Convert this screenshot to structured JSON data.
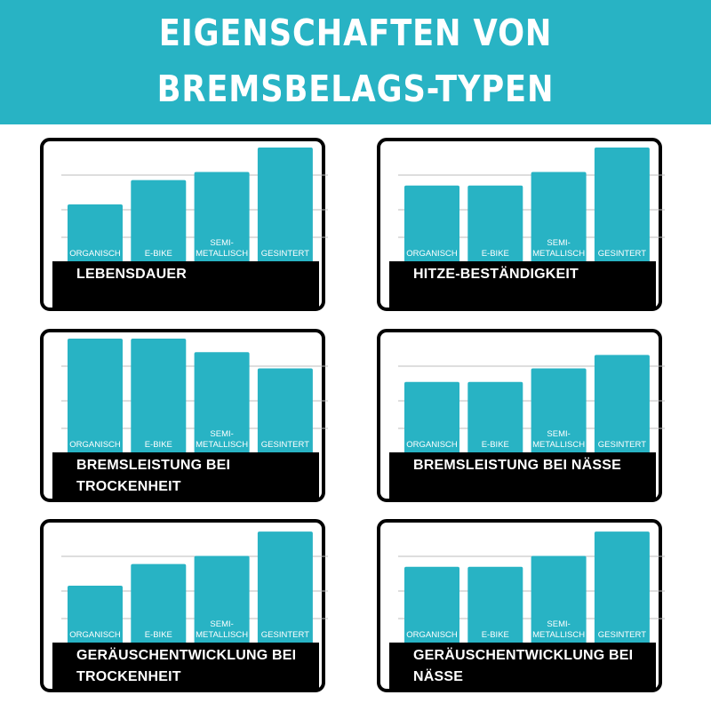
{
  "page": {
    "title_line_1": "EIGENSCHAFTEN VON",
    "title_line_2": "BREMSBELAGS-TYPEN"
  },
  "colors": {
    "header": "#28b3c4",
    "bar": "#28b3c4",
    "caption_bg": "#000000",
    "gridline": "#bdbdbd"
  },
  "chart_data": [
    {
      "type": "bar",
      "title": "LEBENSDAUER",
      "categories": [
        "ORGANISCH",
        "E-BIKE",
        "SEMI-\nMETALLISCH",
        "GESINTERT"
      ],
      "values": [
        2.1,
        3.0,
        3.3,
        4.2
      ],
      "ylim": [
        0,
        4.3
      ],
      "grid": true
    },
    {
      "type": "bar",
      "title": "HITZE-BESTÄNDIGKEIT",
      "categories": [
        "ORGANISCH",
        "E-BIKE",
        "SEMI-\nMETALLISCH",
        "GESINTERT"
      ],
      "values": [
        2.8,
        2.8,
        3.3,
        4.2
      ],
      "ylim": [
        0,
        4.3
      ],
      "grid": true
    },
    {
      "type": "bar",
      "title": "BREMSLEISTUNG BEI\nTROCKENHEIT",
      "categories": [
        "ORGANISCH",
        "E-BIKE",
        "SEMI-\nMETALLISCH",
        "GESINTERT"
      ],
      "values": [
        4.2,
        4.2,
        3.7,
        3.1
      ],
      "ylim": [
        0,
        4.3
      ],
      "grid": true
    },
    {
      "type": "bar",
      "title": "BREMSLEISTUNG BEI NÄSSE",
      "categories": [
        "ORGANISCH",
        "E-BIKE",
        "SEMI-\nMETALLISCH",
        "GESINTERT"
      ],
      "values": [
        2.6,
        2.6,
        3.1,
        3.6
      ],
      "ylim": [
        0,
        4.3
      ],
      "grid": true
    },
    {
      "type": "bar",
      "title": "GERÄUSCHENTWICKLUNG BEI\nTROCKENHEIT",
      "categories": [
        "ORGANISCH",
        "E-BIKE",
        "SEMI-\nMETALLISCH",
        "GESINTERT"
      ],
      "values": [
        2.1,
        2.9,
        3.2,
        4.1
      ],
      "ylim": [
        0,
        4.3
      ],
      "grid": true
    },
    {
      "type": "bar",
      "title": "GERÄUSCHENTWICKLUNG  BEI\nNÄSSE",
      "categories": [
        "ORGANISCH",
        "E-BIKE",
        "SEMI-\nMETALLISCH",
        "GESINTERT"
      ],
      "values": [
        2.8,
        2.8,
        3.2,
        4.1
      ],
      "ylim": [
        0,
        4.3
      ],
      "grid": true
    }
  ]
}
